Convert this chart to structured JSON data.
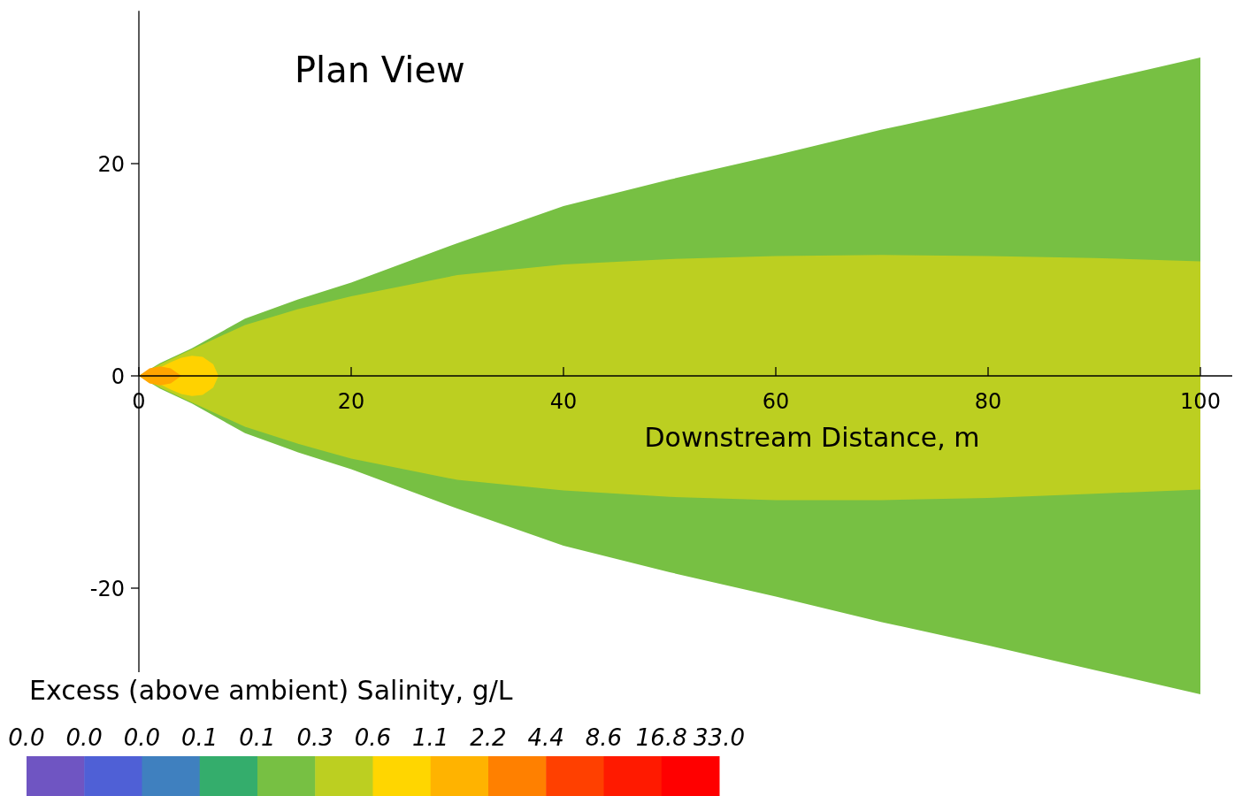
{
  "chart_data": {
    "type": "area",
    "title": "Plan View",
    "xlabel": "Downstream Distance, m",
    "legend_title": "Excess (above ambient) Salinity, g/L",
    "x": [
      0,
      2,
      5,
      10,
      15,
      20,
      30,
      40,
      50,
      60,
      70,
      80,
      90,
      100
    ],
    "xlim": [
      0,
      103
    ],
    "ylim": [
      -30.5,
      34.4
    ],
    "xticks": [
      0,
      20,
      40,
      60,
      80,
      100
    ],
    "yticks": [
      -20,
      0,
      20
    ],
    "annotations": [
      "0.0",
      "0.0",
      "0.0",
      "0.1",
      "0.1",
      "0.3",
      "0.6",
      "1.1",
      "2.2",
      "4.4",
      "8.6",
      "16.8",
      "33.0"
    ],
    "series": [
      {
        "color": "#77c043",
        "values": [
          0,
          1.2,
          2.6,
          5.4,
          7.2,
          8.8,
          12.5,
          16,
          18.5,
          20.8,
          23.2,
          25.4,
          27.7,
          30
        ]
      },
      {
        "color": "#77c043",
        "values": [
          0,
          -1.2,
          -2.6,
          -5.4,
          -7.2,
          -8.8,
          -12.5,
          -16,
          -18.5,
          -20.8,
          -23.2,
          -25.4,
          -27.7,
          -30
        ]
      },
      {
        "color": "#bccf21",
        "values": [
          0,
          1.1,
          2.5,
          4.8,
          6.3,
          7.5,
          9.5,
          10.5,
          11,
          11.3,
          11.4,
          11.3,
          11.1,
          10.8
        ]
      },
      {
        "color": "#bccf21",
        "values": [
          0,
          -1.1,
          -2.5,
          -4.8,
          -6.4,
          -7.8,
          -9.8,
          -10.8,
          -11.4,
          -11.7,
          -11.7,
          -11.5,
          -11.1,
          -10.7
        ]
      },
      {
        "color": "#ffd200",
        "x": [
          0,
          1,
          2,
          3,
          4,
          5,
          6,
          7,
          7.5
        ],
        "values": [
          0,
          0.5,
          0.8,
          1.3,
          1.7,
          1.9,
          1.8,
          1.1,
          0
        ]
      },
      {
        "color": "#ffd200",
        "x": [
          0,
          1,
          2,
          3,
          4,
          5,
          6,
          7,
          7.5
        ],
        "values": [
          0,
          -0.5,
          -0.8,
          -1.3,
          -1.7,
          -1.9,
          -1.8,
          -1.1,
          0
        ]
      },
      {
        "color": "#ffa400",
        "x": [
          0,
          1,
          2,
          3,
          4
        ],
        "values": [
          0,
          0.7,
          0.9,
          0.7,
          0
        ]
      },
      {
        "color": "#ffa800",
        "x": [
          0,
          1,
          2,
          3,
          4
        ],
        "values": [
          0,
          -0.7,
          -0.9,
          -0.7,
          0
        ]
      }
    ]
  }
}
